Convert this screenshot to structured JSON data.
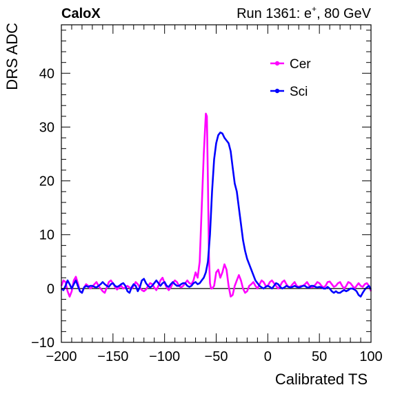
{
  "chart_data": {
    "type": "line",
    "experiment_label": "CaloX",
    "run_label": "Run 1361: e",
    "run_label_sup": "+",
    "run_label_suffix": ", 80 GeV",
    "xlabel": "Calibrated TS",
    "ylabel": "DRS ADC",
    "xlim": [
      -200,
      100
    ],
    "ylim": [
      -10,
      49
    ],
    "x_ticks": [
      -200,
      -150,
      -100,
      -50,
      0,
      50,
      100
    ],
    "x_tick_labels": [
      "−200",
      "−150",
      "−100",
      "−50",
      "0",
      "50",
      "100"
    ],
    "y_ticks": [
      -10,
      0,
      10,
      20,
      30,
      40
    ],
    "y_tick_labels": [
      "−10",
      "0",
      "10",
      "20",
      "30",
      "40"
    ],
    "legend_position": "top-right",
    "grid": false,
    "series": [
      {
        "name": "Cer",
        "color": "#ff00ff",
        "points": [
          [
            -200,
            0.5
          ],
          [
            -198,
            1.5
          ],
          [
            -196,
            1.2
          ],
          [
            -194,
            -0.5
          ],
          [
            -192,
            -1.5
          ],
          [
            -190,
            -0.5
          ],
          [
            -188,
            1.5
          ],
          [
            -186,
            2.2
          ],
          [
            -184,
            1.0
          ],
          [
            -182,
            -0.5
          ],
          [
            -180,
            -0.8
          ],
          [
            -178,
            0.2
          ],
          [
            -176,
            0.8
          ],
          [
            -174,
            0.5
          ],
          [
            -172,
            0.0
          ],
          [
            -170,
            0.3
          ],
          [
            -168,
            0.8
          ],
          [
            -166,
            1.2
          ],
          [
            -164,
            0.5
          ],
          [
            -162,
            0.0
          ],
          [
            -160,
            -0.5
          ],
          [
            -158,
            -0.8
          ],
          [
            -156,
            0.2
          ],
          [
            -154,
            1.2
          ],
          [
            -152,
            1.5
          ],
          [
            -150,
            1.0
          ],
          [
            -148,
            0.3
          ],
          [
            -146,
            -0.2
          ],
          [
            -144,
            0.2
          ],
          [
            -142,
            0.5
          ],
          [
            -140,
            0.0
          ],
          [
            -138,
            0.2
          ],
          [
            -136,
            0.5
          ],
          [
            -134,
            0.2
          ],
          [
            -132,
            0.0
          ],
          [
            -130,
            0.5
          ],
          [
            -128,
            1.2
          ],
          [
            -126,
            0.8
          ],
          [
            -124,
            0.2
          ],
          [
            -122,
            -0.3
          ],
          [
            -120,
            -0.5
          ],
          [
            -118,
            -0.2
          ],
          [
            -116,
            0.5
          ],
          [
            -114,
            1.0
          ],
          [
            -112,
            0.8
          ],
          [
            -110,
            0.2
          ],
          [
            -108,
            -0.3
          ],
          [
            -106,
            0.5
          ],
          [
            -104,
            1.5
          ],
          [
            -102,
            2.0
          ],
          [
            -100,
            1.0
          ],
          [
            -98,
            0.2
          ],
          [
            -96,
            -0.3
          ],
          [
            -94,
            0.2
          ],
          [
            -92,
            1.0
          ],
          [
            -90,
            1.5
          ],
          [
            -88,
            1.2
          ],
          [
            -86,
            0.5
          ],
          [
            -84,
            0.2
          ],
          [
            -82,
            0.5
          ],
          [
            -80,
            1.0
          ],
          [
            -78,
            1.5
          ],
          [
            -76,
            1.0
          ],
          [
            -74,
            0.8
          ],
          [
            -72,
            1.5
          ],
          [
            -70,
            3.0
          ],
          [
            -68,
            2.0
          ],
          [
            -66,
            5.0
          ],
          [
            -64,
            15.0
          ],
          [
            -62,
            25.0
          ],
          [
            -60,
            32.5
          ],
          [
            -59,
            32.0
          ],
          [
            -58,
            20.0
          ],
          [
            -57,
            6.0
          ],
          [
            -56,
            1.0
          ],
          [
            -55,
            0.0
          ],
          [
            -54,
            0.0
          ],
          [
            -52,
            0.5
          ],
          [
            -50,
            3.0
          ],
          [
            -48,
            3.5
          ],
          [
            -46,
            2.0
          ],
          [
            -44,
            3.0
          ],
          [
            -42,
            4.5
          ],
          [
            -40,
            3.5
          ],
          [
            -38,
            0.5
          ],
          [
            -36,
            -1.5
          ],
          [
            -34,
            -1.2
          ],
          [
            -32,
            0.5
          ],
          [
            -30,
            1.5
          ],
          [
            -28,
            2.5
          ],
          [
            -26,
            1.5
          ],
          [
            -24,
            0.0
          ],
          [
            -22,
            -0.8
          ],
          [
            -20,
            -0.5
          ],
          [
            -18,
            0.5
          ],
          [
            -16,
            0.8
          ],
          [
            -14,
            1.2
          ],
          [
            -12,
            0.5
          ],
          [
            -10,
            0.0
          ],
          [
            -8,
            0.8
          ],
          [
            -6,
            1.5
          ],
          [
            -4,
            1.2
          ],
          [
            -2,
            0.5
          ],
          [
            0,
            0.5
          ],
          [
            2,
            1.2
          ],
          [
            4,
            1.5
          ],
          [
            6,
            1.0
          ],
          [
            8,
            0.5
          ],
          [
            10,
            0.0
          ],
          [
            12,
            0.5
          ],
          [
            14,
            1.2
          ],
          [
            16,
            1.5
          ],
          [
            18,
            0.8
          ],
          [
            20,
            0.3
          ],
          [
            22,
            0.3
          ],
          [
            24,
            0.8
          ],
          [
            26,
            1.2
          ],
          [
            28,
            0.5
          ],
          [
            30,
            0.3
          ],
          [
            32,
            0.5
          ],
          [
            34,
            0.5
          ],
          [
            36,
            0.8
          ],
          [
            38,
            1.2
          ],
          [
            40,
            0.6
          ],
          [
            42,
            0.2
          ],
          [
            44,
            0.3
          ],
          [
            46,
            0.7
          ],
          [
            48,
            1.2
          ],
          [
            50,
            1.0
          ],
          [
            52,
            0.5
          ],
          [
            54,
            0.2
          ],
          [
            56,
            0.5
          ],
          [
            58,
            1.2
          ],
          [
            60,
            1.3
          ],
          [
            62,
            0.8
          ],
          [
            64,
            0.3
          ],
          [
            66,
            0.5
          ],
          [
            68,
            1.0
          ],
          [
            70,
            1.2
          ],
          [
            72,
            0.5
          ],
          [
            74,
            0.0
          ],
          [
            76,
            0.5
          ],
          [
            78,
            1.2
          ],
          [
            80,
            1.0
          ],
          [
            82,
            0.5
          ],
          [
            84,
            0.0
          ],
          [
            86,
            0.5
          ],
          [
            88,
            1.0
          ],
          [
            90,
            0.5
          ],
          [
            92,
            0.3
          ],
          [
            94,
            0.8
          ],
          [
            96,
            1.0
          ],
          [
            98,
            0.5
          ],
          [
            100,
            -0.5
          ]
        ]
      },
      {
        "name": "Sci",
        "color": "#0000ff",
        "points": [
          [
            -200,
            0.0
          ],
          [
            -198,
            -0.3
          ],
          [
            -196,
            0.5
          ],
          [
            -194,
            1.5
          ],
          [
            -192,
            0.8
          ],
          [
            -190,
            0.0
          ],
          [
            -188,
            0.8
          ],
          [
            -186,
            1.5
          ],
          [
            -184,
            0.5
          ],
          [
            -182,
            -0.5
          ],
          [
            -180,
            -0.8
          ],
          [
            -178,
            0.2
          ],
          [
            -176,
            0.5
          ],
          [
            -174,
            0.3
          ],
          [
            -172,
            0.5
          ],
          [
            -170,
            0.5
          ],
          [
            -168,
            0.3
          ],
          [
            -166,
            0.2
          ],
          [
            -164,
            0.5
          ],
          [
            -162,
            0.8
          ],
          [
            -160,
            1.2
          ],
          [
            -158,
            0.8
          ],
          [
            -156,
            0.5
          ],
          [
            -154,
            0.3
          ],
          [
            -152,
            0.8
          ],
          [
            -150,
            1.0
          ],
          [
            -148,
            0.5
          ],
          [
            -146,
            0.3
          ],
          [
            -144,
            0.5
          ],
          [
            -142,
            0.8
          ],
          [
            -140,
            1.0
          ],
          [
            -138,
            0.5
          ],
          [
            -136,
            -0.5
          ],
          [
            -134,
            -0.8
          ],
          [
            -132,
            0.2
          ],
          [
            -130,
            0.8
          ],
          [
            -128,
            0.5
          ],
          [
            -126,
            -0.5
          ],
          [
            -124,
            0.2
          ],
          [
            -122,
            1.5
          ],
          [
            -120,
            1.8
          ],
          [
            -118,
            1.0
          ],
          [
            -116,
            0.5
          ],
          [
            -114,
            0.2
          ],
          [
            -112,
            0.5
          ],
          [
            -110,
            1.0
          ],
          [
            -108,
            1.5
          ],
          [
            -106,
            1.0
          ],
          [
            -104,
            0.5
          ],
          [
            -102,
            1.0
          ],
          [
            -100,
            1.2
          ],
          [
            -98,
            0.5
          ],
          [
            -96,
            0.3
          ],
          [
            -94,
            0.8
          ],
          [
            -92,
            1.2
          ],
          [
            -90,
            0.8
          ],
          [
            -88,
            0.5
          ],
          [
            -86,
            0.5
          ],
          [
            -84,
            0.8
          ],
          [
            -82,
            1.0
          ],
          [
            -80,
            1.0
          ],
          [
            -78,
            0.5
          ],
          [
            -76,
            0.3
          ],
          [
            -74,
            0.5
          ],
          [
            -72,
            1.0
          ],
          [
            -70,
            1.2
          ],
          [
            -68,
            0.8
          ],
          [
            -66,
            1.0
          ],
          [
            -64,
            1.5
          ],
          [
            -62,
            2.0
          ],
          [
            -60,
            3.0
          ],
          [
            -58,
            5.0
          ],
          [
            -56,
            10.0
          ],
          [
            -54,
            18.0
          ],
          [
            -52,
            24.0
          ],
          [
            -50,
            27.0
          ],
          [
            -48,
            28.5
          ],
          [
            -46,
            29.0
          ],
          [
            -44,
            28.8
          ],
          [
            -42,
            28.0
          ],
          [
            -40,
            27.5
          ],
          [
            -38,
            27.0
          ],
          [
            -36,
            25.5
          ],
          [
            -34,
            22.5
          ],
          [
            -32,
            19.5
          ],
          [
            -30,
            18.0
          ],
          [
            -28,
            15.0
          ],
          [
            -26,
            12.0
          ],
          [
            -24,
            9.0
          ],
          [
            -22,
            7.0
          ],
          [
            -20,
            5.5
          ],
          [
            -18,
            4.5
          ],
          [
            -16,
            3.5
          ],
          [
            -14,
            2.5
          ],
          [
            -12,
            1.5
          ],
          [
            -10,
            1.0
          ],
          [
            -8,
            0.5
          ],
          [
            -6,
            0.2
          ],
          [
            -4,
            0.0
          ],
          [
            -2,
            0.3
          ],
          [
            0,
            0.5
          ],
          [
            2,
            0.3
          ],
          [
            4,
            0.0
          ],
          [
            6,
            0.5
          ],
          [
            8,
            1.0
          ],
          [
            10,
            0.8
          ],
          [
            12,
            0.3
          ],
          [
            14,
            0.0
          ],
          [
            16,
            0.2
          ],
          [
            18,
            0.5
          ],
          [
            20,
            0.3
          ],
          [
            22,
            0.2
          ],
          [
            24,
            0.3
          ],
          [
            26,
            0.5
          ],
          [
            28,
            0.3
          ],
          [
            30,
            0.2
          ],
          [
            32,
            0.3
          ],
          [
            34,
            0.5
          ],
          [
            36,
            0.5
          ],
          [
            38,
            0.2
          ],
          [
            40,
            0.2
          ],
          [
            42,
            0.5
          ],
          [
            44,
            0.5
          ],
          [
            46,
            0.3
          ],
          [
            48,
            0.2
          ],
          [
            50,
            0.3
          ],
          [
            52,
            0.2
          ],
          [
            54,
            0.0
          ],
          [
            56,
            0.0
          ],
          [
            58,
            0.3
          ],
          [
            60,
            0.0
          ],
          [
            62,
            -0.5
          ],
          [
            64,
            -0.8
          ],
          [
            66,
            -0.5
          ],
          [
            68,
            -0.8
          ],
          [
            70,
            -0.8
          ],
          [
            72,
            -0.5
          ],
          [
            74,
            -0.3
          ],
          [
            76,
            -0.5
          ],
          [
            78,
            -0.3
          ],
          [
            80,
            0.0
          ],
          [
            82,
            0.0
          ],
          [
            84,
            -0.2
          ],
          [
            86,
            -0.5
          ],
          [
            88,
            -1.2
          ],
          [
            90,
            -1.5
          ],
          [
            92,
            -0.8
          ],
          [
            94,
            -0.2
          ],
          [
            96,
            0.2
          ],
          [
            98,
            0.5
          ],
          [
            100,
            -0.2
          ]
        ]
      }
    ]
  }
}
